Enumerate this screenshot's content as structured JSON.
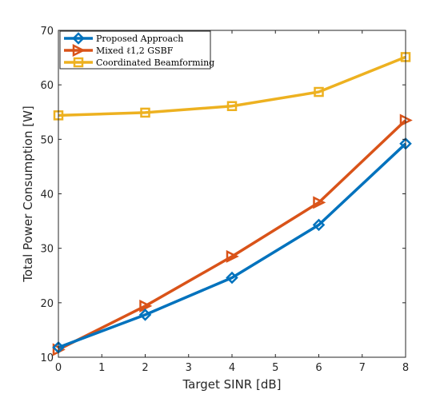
{
  "chart_data": {
    "type": "line",
    "xlabel": "Target SINR [dB]",
    "ylabel": "Total Power Consumption [W]",
    "xlim": [
      0,
      8
    ],
    "ylim": [
      10,
      70
    ],
    "xticks": [
      0,
      1,
      2,
      3,
      4,
      5,
      6,
      7,
      8
    ],
    "yticks": [
      10,
      20,
      30,
      40,
      50,
      60,
      70
    ],
    "grid": false,
    "legend_position": "top-left",
    "x": [
      0,
      2,
      4,
      6,
      8
    ],
    "series": [
      {
        "name": "Proposed Approach",
        "marker": "diamond",
        "color": "#0072BD",
        "values": [
          11.8,
          17.8,
          24.6,
          34.3,
          49.2
        ]
      },
      {
        "name": "Mixed ℓ1,2 GSBF",
        "marker": "triangle-right",
        "color": "#D95319",
        "values": [
          11.4,
          19.4,
          28.5,
          38.4,
          53.5
        ]
      },
      {
        "name": "Coordinated Beamforming",
        "marker": "square",
        "color": "#EDB120",
        "values": [
          54.4,
          54.9,
          56.1,
          58.7,
          65.1
        ]
      }
    ]
  }
}
